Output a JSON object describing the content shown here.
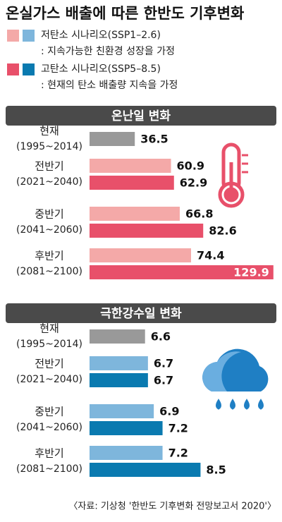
{
  "title": "온실가스 배출에 따른 한반도 기후변화",
  "legend": [
    {
      "name": "저탄소 시나리오(SSP1–2.6)",
      "description": ": 지속가능한 친환경 성장을 가정",
      "colors": [
        "#f4a9a8",
        "#7eb6dc"
      ]
    },
    {
      "name": "고탄소 시나리오(SSP5–8.5)",
      "description": ": 현재의 탄소 배출량 지속을 가정",
      "colors": [
        "#e8506a",
        "#0a7ab0"
      ]
    }
  ],
  "source": "〈자료: 기상청 '한반도 기후변화 전망보고서 2020'〉",
  "chart_data": [
    {
      "type": "bar",
      "title": "온난일 변화",
      "categories": [
        "현재",
        "전반기",
        "중반기",
        "후반기"
      ],
      "periods": [
        "(1995~2014)",
        "(2021~2040)",
        "(2041~2060)",
        "(2081~2100)"
      ],
      "baseline_color": "#999999",
      "xlim": [
        6,
        130
      ],
      "series": [
        {
          "color": "#f4a9a8",
          "values": [
            36.5,
            60.9,
            66.8,
            74.4
          ]
        },
        {
          "color": "#e8506a",
          "values": [
            null,
            62.9,
            82.6,
            129.9
          ]
        }
      ]
    },
    {
      "type": "bar",
      "title": "극한강수일 변화",
      "categories": [
        "현재",
        "전반기",
        "중반기",
        "후반기"
      ],
      "periods": [
        "(1995~2014)",
        "(2021~2040)",
        "(2041~2060)",
        "(2081~2100)"
      ],
      "baseline_color": "#999999",
      "xlim": [
        4.7,
        11
      ],
      "series": [
        {
          "color": "#7eb6dc",
          "values": [
            6.6,
            6.7,
            6.9,
            7.2
          ]
        },
        {
          "color": "#0a7ab0",
          "values": [
            null,
            6.7,
            7.2,
            8.5
          ]
        }
      ]
    }
  ]
}
